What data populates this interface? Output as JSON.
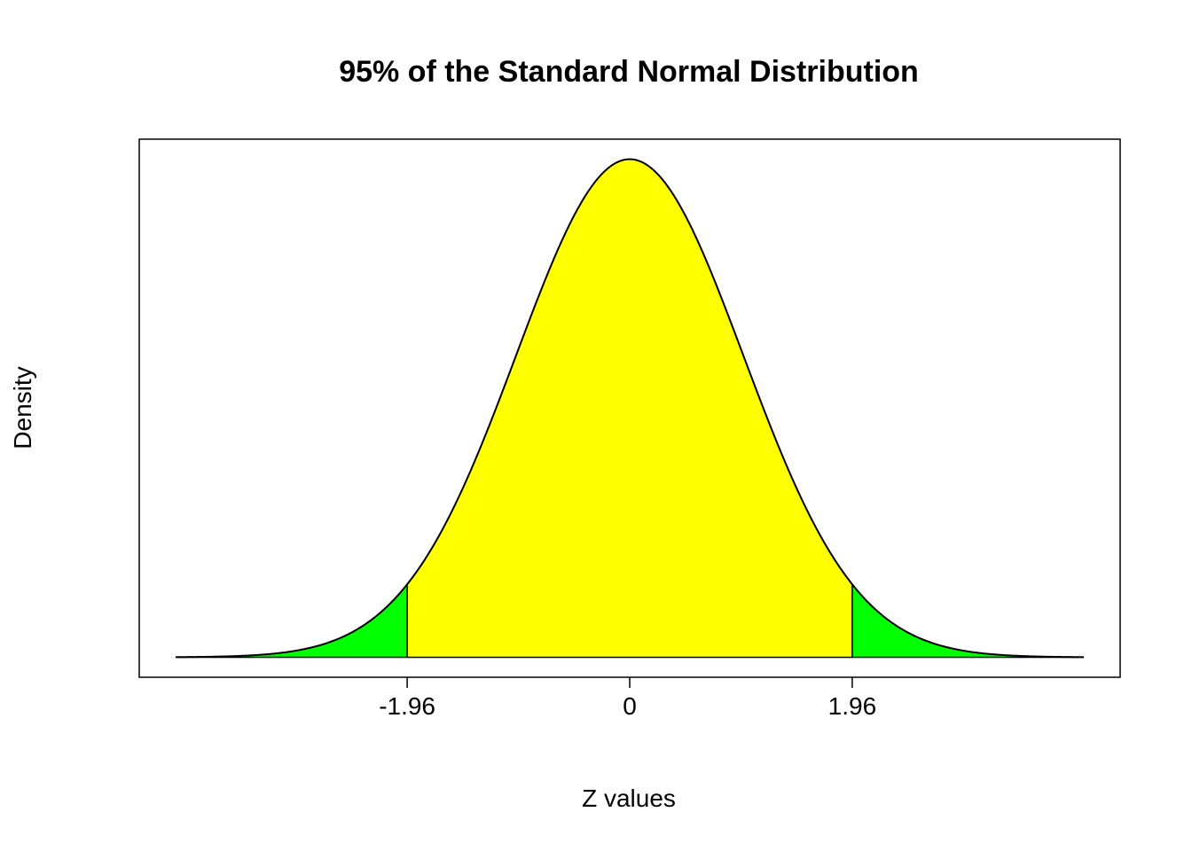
{
  "chart_data": {
    "type": "area",
    "title": "95% of the Standard Normal Distribution",
    "xlabel": "Z values",
    "ylabel": "Density",
    "distribution": "standard-normal",
    "mean": 0,
    "sd": 1,
    "x_range": [
      -4,
      4
    ],
    "xlim": [
      -4.32,
      4.32
    ],
    "ylim": [
      -0.016,
      0.415
    ],
    "x_ticks": [
      {
        "value": -1.96,
        "label": "-1.96"
      },
      {
        "value": 0,
        "label": "0"
      },
      {
        "value": 1.96,
        "label": "1.96"
      }
    ],
    "y_ticks_shown": false,
    "grid": false,
    "legend": "none",
    "regions": [
      {
        "from": -4,
        "to": -1.96,
        "color": "#00ff00"
      },
      {
        "from": -1.96,
        "to": 1.96,
        "color": "#ffff00"
      },
      {
        "from": 1.96,
        "to": 4,
        "color": "#00ff00"
      }
    ],
    "cutoffs": [
      -1.96,
      1.96
    ],
    "line_color": "#000000"
  }
}
